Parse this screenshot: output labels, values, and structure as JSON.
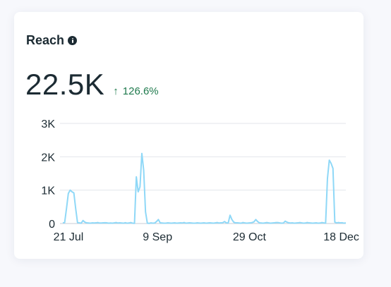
{
  "card": {
    "title": "Reach",
    "info_icon": "info-icon",
    "value": "22.5K",
    "change": {
      "direction_icon": "arrow-up-icon",
      "arrow": "↑",
      "text": "126.6%",
      "color": "#1f7a4d"
    }
  },
  "chart_data": {
    "type": "line",
    "title": "",
    "xlabel": "",
    "ylabel": "",
    "ylim": [
      0,
      3000
    ],
    "y_ticks": [
      {
        "label": "0",
        "value": 0
      },
      {
        "label": "1K",
        "value": 1000
      },
      {
        "label": "2K",
        "value": 2000
      },
      {
        "label": "3K",
        "value": 3000
      }
    ],
    "x_ticks": [
      {
        "label": "21 Jul",
        "index": 0
      },
      {
        "label": "9 Sep",
        "index": 50
      },
      {
        "label": "29 Oct",
        "index": 100
      },
      {
        "label": "18 Dec",
        "index": 150
      }
    ],
    "grid": true,
    "series": [
      {
        "color": "#8fd8f7",
        "values": [
          20,
          30,
          450,
          900,
          1000,
          950,
          920,
          450,
          30,
          20,
          10,
          90,
          40,
          20,
          15,
          10,
          20,
          15,
          20,
          30,
          15,
          15,
          20,
          25,
          20,
          10,
          15,
          10,
          20,
          30,
          15,
          20,
          15,
          10,
          25,
          10,
          15,
          30,
          10,
          5,
          1400,
          950,
          1100,
          2100,
          1600,
          350,
          10,
          5,
          20,
          10,
          15,
          60,
          120,
          20,
          15,
          10,
          10,
          20,
          15,
          10,
          15,
          20,
          10,
          15,
          20,
          15,
          30,
          10,
          15,
          20,
          15,
          10,
          10,
          20,
          15,
          10,
          15,
          20,
          10,
          15,
          20,
          15,
          10,
          20,
          30,
          15,
          20,
          25,
          60,
          20,
          15,
          250,
          120,
          40,
          20,
          20,
          15,
          10,
          30,
          20,
          10,
          15,
          20,
          30,
          50,
          120,
          60,
          20,
          15,
          10,
          20,
          30,
          20,
          10,
          15,
          20,
          30,
          30,
          20,
          10,
          15,
          70,
          40,
          20,
          15,
          20,
          10,
          15,
          20,
          30,
          20,
          10,
          15,
          30,
          20,
          15,
          10,
          15,
          20,
          10,
          15,
          30,
          20,
          10,
          1350,
          1900,
          1800,
          1650,
          40,
          20,
          30,
          20,
          25,
          10,
          20
        ]
      }
    ]
  }
}
